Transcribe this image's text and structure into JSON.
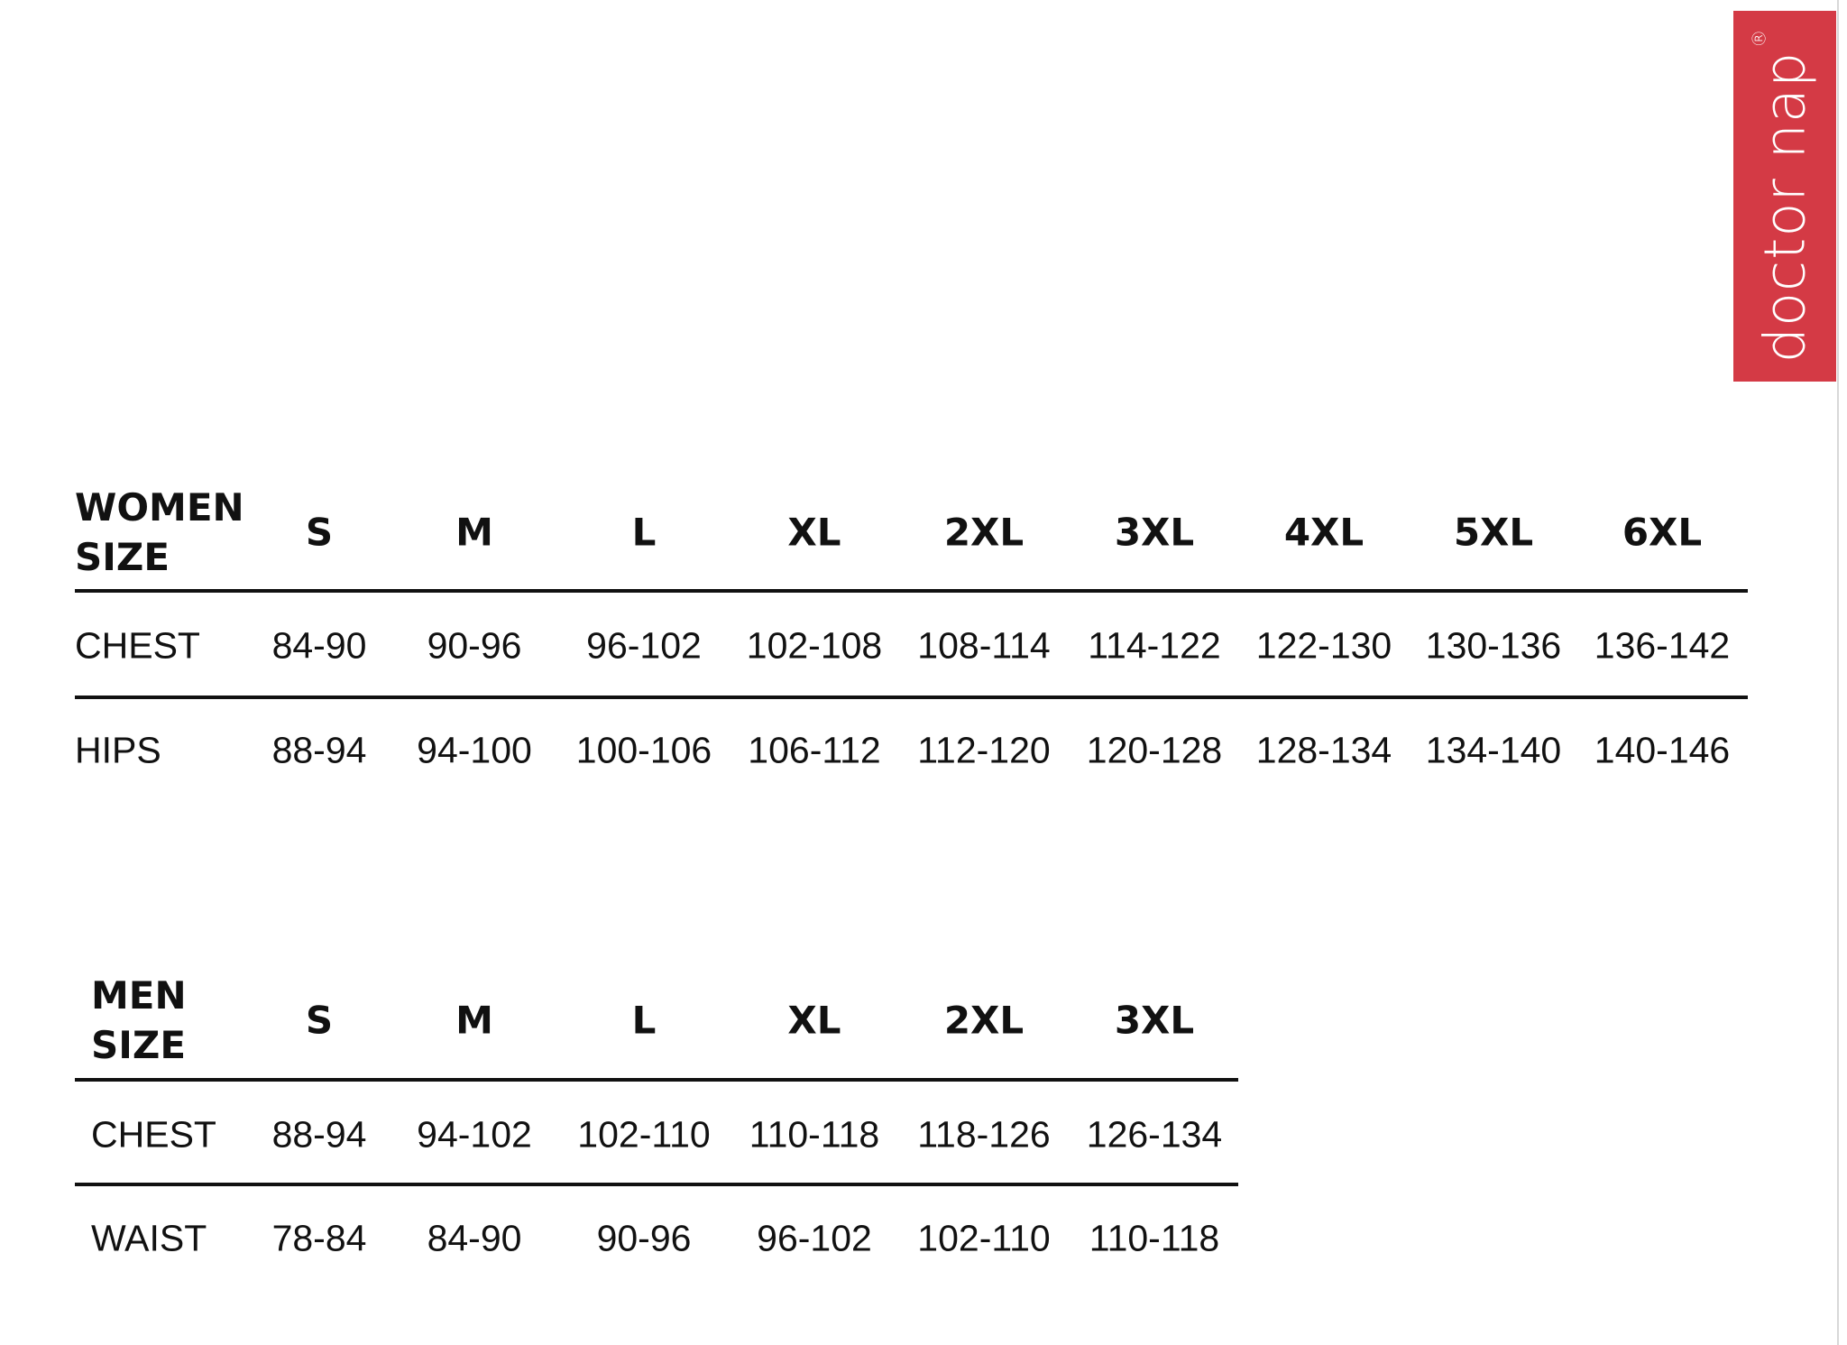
{
  "brand": {
    "name": "doctor nap",
    "mark": "®",
    "color": "#d43a45"
  },
  "women": {
    "corner": [
      "WOMEN",
      "SIZE"
    ],
    "sizes": [
      "S",
      "M",
      "L",
      "XL",
      "2XL",
      "3XL",
      "4XL",
      "5XL",
      "6XL"
    ],
    "rows": [
      {
        "label": "CHEST",
        "values": [
          "84-90",
          "90-96",
          "96-102",
          "102-108",
          "108-114",
          "114-122",
          "122-130",
          "130-136",
          "136-142"
        ]
      },
      {
        "label": "HIPS",
        "values": [
          "88-94",
          "94-100",
          "100-106",
          "106-112",
          "112-120",
          "120-128",
          "128-134",
          "134-140",
          "140-146"
        ]
      }
    ]
  },
  "men": {
    "corner": [
      "MEN",
      "SIZE"
    ],
    "sizes": [
      "S",
      "M",
      "L",
      "XL",
      "2XL",
      "3XL"
    ],
    "rows": [
      {
        "label": "CHEST",
        "values": [
          "88-94",
          "94-102",
          "102-110",
          "110-118",
          "118-126",
          "126-134"
        ]
      },
      {
        "label": "WAIST",
        "values": [
          "78-84",
          "84-90",
          "90-96",
          "96-102",
          "102-110",
          "110-118"
        ]
      }
    ]
  }
}
